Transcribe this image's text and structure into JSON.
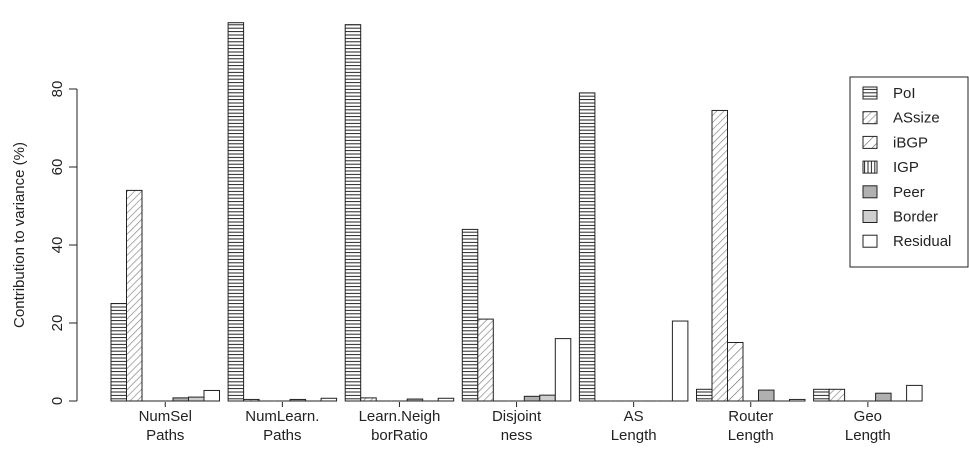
{
  "chart_data": {
    "type": "bar",
    "ylabel": "Contribution to variance (%)",
    "xlabel": "",
    "ylim": [
      0,
      100
    ],
    "yticks": [
      0,
      20,
      40,
      60,
      80
    ],
    "legend_position": "right",
    "grid": false,
    "categories": [
      [
        "NumSel",
        "Paths"
      ],
      [
        "NumLearn.",
        "Paths"
      ],
      [
        "Learn.Neigh",
        "borRatio"
      ],
      [
        "Disjoint",
        "ness"
      ],
      [
        "AS",
        "Length"
      ],
      [
        "Router",
        "Length"
      ],
      [
        "Geo",
        "Length"
      ]
    ],
    "series": [
      {
        "name": "PoI",
        "pattern": "hlines",
        "values": [
          25,
          97,
          96.5,
          44,
          79,
          3,
          3
        ]
      },
      {
        "name": "ASsize",
        "pattern": "diag-dense",
        "values": [
          54,
          0.4,
          0.8,
          21,
          0,
          74.5,
          3
        ]
      },
      {
        "name": "iBGP",
        "pattern": "diag-sparse",
        "values": [
          0,
          0,
          0,
          0,
          0,
          15,
          0
        ]
      },
      {
        "name": "IGP",
        "pattern": "vlines",
        "values": [
          0,
          0,
          0,
          0,
          0,
          0,
          0
        ]
      },
      {
        "name": "Peer",
        "pattern": "gray-dark",
        "values": [
          0.8,
          0.4,
          0.5,
          1.2,
          0,
          2.8,
          2
        ]
      },
      {
        "name": "Border",
        "pattern": "gray-light",
        "values": [
          1,
          0,
          0,
          1.5,
          0,
          0,
          0
        ]
      },
      {
        "name": "Residual",
        "pattern": "white",
        "values": [
          2.7,
          0.7,
          0.7,
          16,
          20.5,
          0.4,
          4
        ]
      }
    ]
  }
}
